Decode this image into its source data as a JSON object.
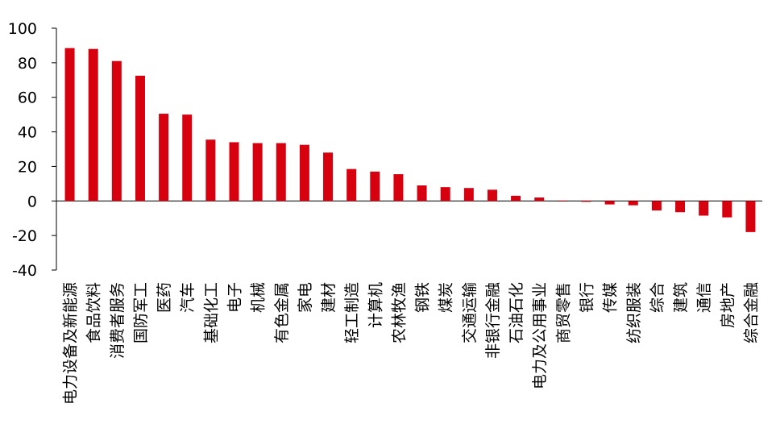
{
  "chart_data": {
    "type": "bar",
    "categories": [
      "电力设备及新能源",
      "食品饮料",
      "消费者服务",
      "国防军工",
      "医药",
      "汽车",
      "基础化工",
      "电子",
      "机械",
      "有色金属",
      "家电",
      "建材",
      "轻工制造",
      "计算机",
      "农林牧渔",
      "钢铁",
      "煤炭",
      "交通运输",
      "非银行金融",
      "石油石化",
      "电力及公用事业",
      "商贸零售",
      "银行",
      "传媒",
      "纺织服装",
      "综合",
      "建筑",
      "通信",
      "房地产",
      "综合金融"
    ],
    "values": [
      88.5,
      88,
      81,
      72.5,
      50.5,
      50,
      35.5,
      34,
      33.5,
      33.5,
      32.5,
      28,
      18.5,
      17,
      15.5,
      9,
      8,
      7.5,
      6.5,
      3,
      2,
      -0.3,
      -0.5,
      -2,
      -2.5,
      -5.5,
      -6.5,
      -8.5,
      -9.5,
      -18
    ],
    "color": "#d7000f",
    "ylim": [
      -40,
      100
    ],
    "yticks": [
      -40,
      -20,
      0,
      20,
      40,
      60,
      80,
      100
    ],
    "grid": false
  }
}
